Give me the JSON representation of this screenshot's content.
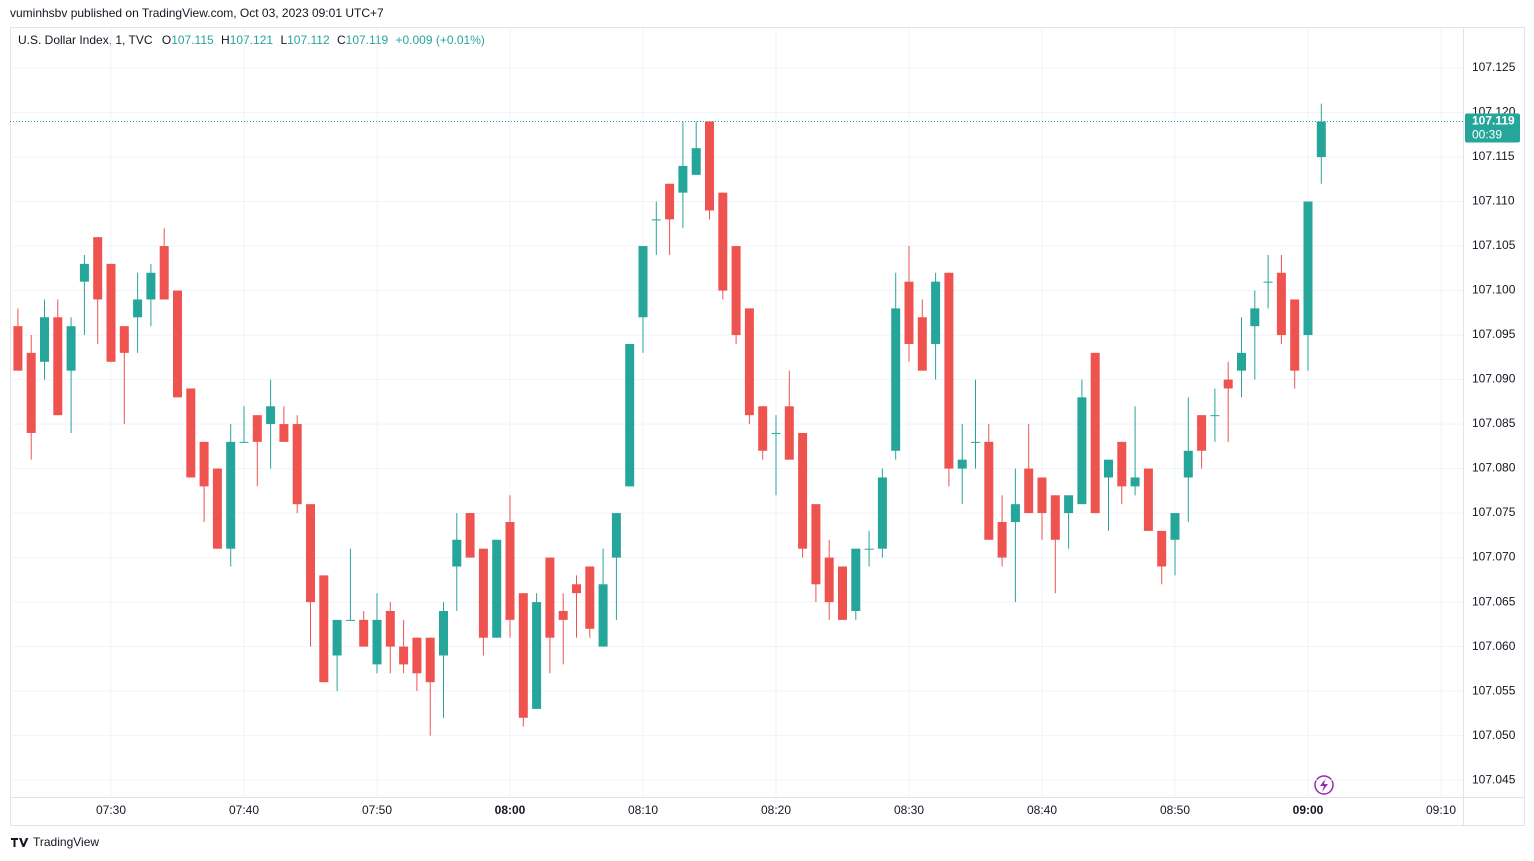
{
  "header": {
    "published": "vuminhsbv published on TradingView.com, Oct 03, 2023 09:01 UTC+7"
  },
  "footer": {
    "brand": "TradingView"
  },
  "chart_data": {
    "type": "candlestick",
    "title": "U.S. Dollar Index, 1, TVC",
    "ohlc_legend": {
      "open_label": "O",
      "open": 107.115,
      "high_label": "H",
      "high": 107.121,
      "low_label": "L",
      "low": 107.112,
      "close_label": "C",
      "close": 107.119,
      "change": "+0.009 (+0.01%)"
    },
    "last_price": {
      "value": 107.119,
      "countdown": "00:39"
    },
    "up_color": "#26a69a",
    "down_color": "#ef5350",
    "grid": true,
    "ylim": [
      107.0431,
      107.1295
    ],
    "yticks": [
      {
        "value": 107.045,
        "label": "107.045"
      },
      {
        "value": 107.05,
        "label": "107.050"
      },
      107.055,
      {
        "value": 107.06,
        "label": "107.060"
      },
      107.065,
      {
        "value": 107.07,
        "label": "107.070"
      },
      107.075,
      {
        "value": 107.08,
        "label": "107.080"
      },
      107.085,
      {
        "value": 107.09,
        "label": "107.090"
      },
      107.095,
      {
        "value": 107.1,
        "label": "107.100"
      },
      107.105,
      {
        "value": 107.11,
        "label": "107.110"
      },
      107.115,
      {
        "value": 107.12,
        "label": "107.120"
      },
      107.125
    ],
    "xticks": [
      "07:30",
      "07:40",
      "07:50",
      "08:00",
      "08:10",
      "08:20",
      "08:30",
      "08:40",
      "08:50",
      "09:00",
      "09:10"
    ],
    "x": [
      "07:23",
      "07:24",
      "07:25",
      "07:26",
      "07:27",
      "07:28",
      "07:29",
      "07:30",
      "07:31",
      "07:32",
      "07:33",
      "07:34",
      "07:35",
      "07:36",
      "07:37",
      "07:38",
      "07:39",
      "07:40",
      "07:41",
      "07:42",
      "07:43",
      "07:44",
      "07:45",
      "07:46",
      "07:47",
      "07:48",
      "07:49",
      "07:50",
      "07:51",
      "07:52",
      "07:53",
      "07:54",
      "07:55",
      "07:56",
      "07:57",
      "07:58",
      "07:59",
      "08:00",
      "08:01",
      "08:02",
      "08:03",
      "08:04",
      "08:05",
      "08:06",
      "08:07",
      "08:08",
      "08:09",
      "08:10",
      "08:11",
      "08:12",
      "08:13",
      "08:14",
      "08:15",
      "08:16",
      "08:17",
      "08:18",
      "08:19",
      "08:20",
      "08:21",
      "08:22",
      "08:23",
      "08:24",
      "08:25",
      "08:26",
      "08:27",
      "08:28",
      "08:29",
      "08:30",
      "08:31",
      "08:32",
      "08:33",
      "08:34",
      "08:35",
      "08:36",
      "08:37",
      "08:38",
      "08:39",
      "08:40",
      "08:41",
      "08:42",
      "08:43",
      "08:44",
      "08:45",
      "08:46",
      "08:47",
      "08:48",
      "08:49",
      "08:50",
      "08:51",
      "08:52",
      "08:53",
      "08:54",
      "08:55",
      "08:56",
      "08:57",
      "08:58",
      "08:59",
      "09:00",
      "09:01"
    ],
    "open": [
      107.096,
      107.093,
      107.092,
      107.097,
      107.091,
      107.101,
      107.106,
      107.103,
      107.096,
      107.097,
      107.099,
      107.105,
      107.1,
      107.089,
      107.083,
      107.08,
      107.071,
      107.083,
      107.086,
      107.085,
      107.085,
      107.085,
      107.076,
      107.068,
      107.059,
      107.063,
      107.063,
      107.058,
      107.064,
      107.06,
      107.061,
      107.061,
      107.059,
      107.069,
      107.075,
      107.071,
      107.061,
      107.074,
      107.066,
      107.053,
      107.07,
      107.064,
      107.067,
      107.069,
      107.06,
      107.07,
      107.078,
      107.097,
      107.108,
      107.112,
      107.111,
      107.113,
      107.119,
      107.111,
      107.105,
      107.098,
      107.087,
      107.084,
      107.087,
      107.084,
      107.076,
      107.07,
      107.069,
      107.064,
      107.071,
      107.071,
      107.082,
      107.101,
      107.097,
      107.094,
      107.102,
      107.08,
      107.083,
      107.083,
      107.074,
      107.074,
      107.08,
      107.079,
      107.077,
      107.075,
      107.076,
      107.093,
      107.079,
      107.083,
      107.078,
      107.08,
      107.073,
      107.072,
      107.079,
      107.086,
      107.086,
      107.09,
      107.091,
      107.096,
      107.101,
      107.102,
      107.099,
      107.095,
      107.115
    ],
    "high": [
      107.098,
      107.095,
      107.099,
      107.099,
      107.097,
      107.104,
      107.106,
      107.103,
      107.096,
      107.102,
      107.103,
      107.107,
      107.1,
      107.089,
      107.083,
      107.08,
      107.085,
      107.087,
      107.086,
      107.09,
      107.087,
      107.086,
      107.076,
      107.068,
      107.063,
      107.071,
      107.064,
      107.066,
      107.065,
      107.063,
      107.061,
      107.061,
      107.065,
      107.075,
      107.075,
      107.071,
      107.072,
      107.077,
      107.066,
      107.066,
      107.07,
      107.066,
      107.068,
      107.069,
      107.071,
      107.075,
      107.094,
      107.105,
      107.11,
      107.112,
      107.119,
      107.119,
      107.119,
      107.111,
      107.105,
      107.098,
      107.087,
      107.086,
      107.091,
      107.084,
      107.076,
      107.072,
      107.069,
      107.071,
      107.073,
      107.08,
      107.102,
      107.105,
      107.099,
      107.102,
      107.102,
      107.085,
      107.09,
      107.085,
      107.077,
      107.08,
      107.085,
      107.079,
      107.077,
      107.077,
      107.09,
      107.093,
      107.081,
      107.083,
      107.087,
      107.08,
      107.073,
      107.075,
      107.088,
      107.086,
      107.089,
      107.092,
      107.097,
      107.1,
      107.104,
      107.104,
      107.099,
      107.11,
      107.121
    ],
    "low": [
      107.091,
      107.081,
      107.09,
      107.086,
      107.084,
      107.095,
      107.094,
      107.092,
      107.085,
      107.093,
      107.096,
      107.099,
      107.088,
      107.079,
      107.074,
      107.071,
      107.069,
      107.083,
      107.078,
      107.08,
      107.083,
      107.075,
      107.06,
      107.056,
      107.055,
      107.063,
      107.06,
      107.057,
      107.057,
      107.057,
      107.055,
      107.05,
      107.052,
      107.064,
      107.07,
      107.059,
      107.061,
      107.061,
      107.051,
      107.053,
      107.057,
      107.058,
      107.061,
      107.061,
      107.06,
      107.063,
      107.078,
      107.093,
      107.104,
      107.104,
      107.107,
      107.113,
      107.108,
      107.099,
      107.094,
      107.085,
      107.081,
      107.077,
      107.081,
      107.07,
      107.065,
      107.063,
      107.063,
      107.063,
      107.069,
      107.07,
      107.081,
      107.092,
      107.091,
      107.09,
      107.078,
      107.076,
      107.08,
      107.072,
      107.069,
      107.065,
      107.075,
      107.072,
      107.066,
      107.071,
      107.076,
      107.075,
      107.073,
      107.076,
      107.077,
      107.073,
      107.067,
      107.068,
      107.074,
      107.08,
      107.083,
      107.083,
      107.088,
      107.09,
      107.098,
      107.094,
      107.089,
      107.091,
      107.112
    ],
    "close": [
      107.091,
      107.084,
      107.097,
      107.086,
      107.096,
      107.103,
      107.099,
      107.092,
      107.093,
      107.099,
      107.102,
      107.099,
      107.088,
      107.079,
      107.078,
      107.071,
      107.083,
      107.083,
      107.083,
      107.087,
      107.083,
      107.076,
      107.065,
      107.056,
      107.063,
      107.063,
      107.06,
      107.063,
      107.06,
      107.058,
      107.057,
      107.056,
      107.064,
      107.072,
      107.07,
      107.061,
      107.072,
      107.063,
      107.052,
      107.065,
      107.061,
      107.063,
      107.066,
      107.062,
      107.067,
      107.075,
      107.094,
      107.105,
      107.108,
      107.108,
      107.114,
      107.116,
      107.109,
      107.1,
      107.095,
      107.086,
      107.082,
      107.084,
      107.081,
      107.071,
      107.067,
      107.065,
      107.063,
      107.071,
      107.071,
      107.079,
      107.098,
      107.094,
      107.091,
      107.101,
      107.08,
      107.081,
      107.083,
      107.072,
      107.07,
      107.076,
      107.075,
      107.075,
      107.072,
      107.077,
      107.088,
      107.075,
      107.081,
      107.078,
      107.079,
      107.073,
      107.069,
      107.075,
      107.082,
      107.082,
      107.086,
      107.089,
      107.093,
      107.098,
      107.101,
      107.095,
      107.091,
      107.11,
      107.119
    ]
  }
}
